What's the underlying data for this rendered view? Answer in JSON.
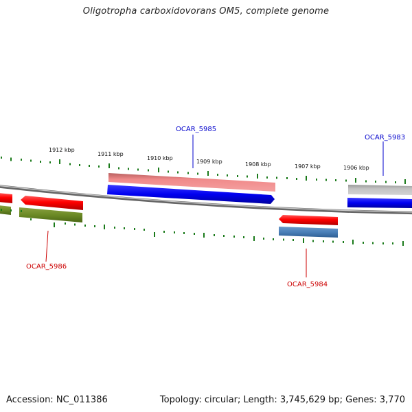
{
  "title": "Oligotropha carboxidovorans OM5, complete genome",
  "footer": {
    "accession": "Accession: NC_011386",
    "summary": "Topology: circular; Length: 3,745,629 bp; Genes: 3,770"
  },
  "colors": {
    "tick": "#1a7a1a",
    "forward_gene_label": "#0000cc",
    "reverse_gene_label": "#cc0000",
    "backbone": "#888888"
  },
  "scale_labels": [
    "1912 kbp",
    "1911 kbp",
    "1910 kbp",
    "1909 kbp",
    "1908 kbp",
    "1907 kbp",
    "1906 kbp"
  ],
  "gene_labels": {
    "g5985": "OCAR_5985",
    "g5983": "OCAR_5983",
    "g5986": "OCAR_5986",
    "g5984": "OCAR_5984"
  }
}
